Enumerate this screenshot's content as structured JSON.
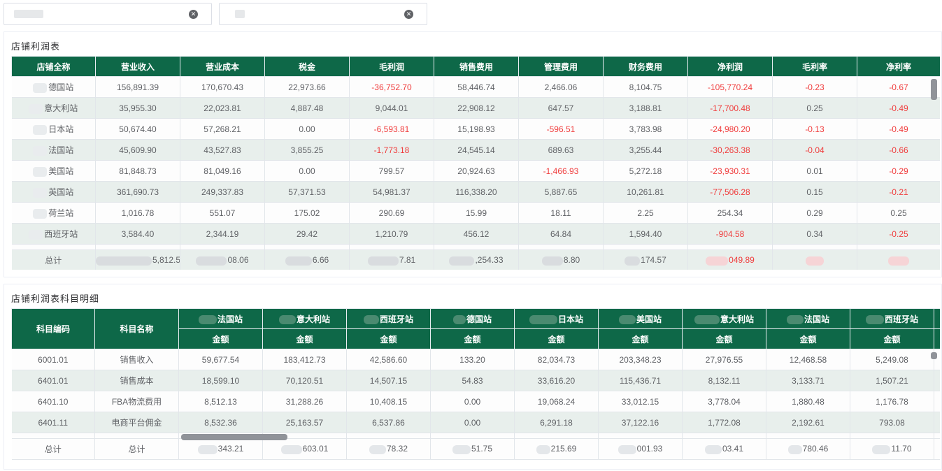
{
  "filters": [
    {
      "value": "",
      "clear_icon": "close-circle-icon"
    },
    {
      "value": "",
      "clear_icon": "close-circle-icon"
    }
  ],
  "profit_table": {
    "title": "店铺利润表",
    "headers": [
      "店铺全称",
      "营业收入",
      "营业成本",
      "税金",
      "毛利润",
      "销售费用",
      "管理费用",
      "财务费用",
      "净利润",
      "毛利率",
      "净利率"
    ],
    "rows": [
      [
        "德国站",
        "156,891.39",
        "170,670.43",
        "22,973.66",
        "-36,752.70",
        "58,446.74",
        "2,466.06",
        "8,104.75",
        "-105,770.24",
        "-0.23",
        "-0.67"
      ],
      [
        "意大利站",
        "35,955.30",
        "22,023.81",
        "4,887.48",
        "9,044.01",
        "22,908.12",
        "647.57",
        "3,188.81",
        "-17,700.48",
        "0.25",
        "-0.49"
      ],
      [
        "日本站",
        "50,674.40",
        "57,268.21",
        "0.00",
        "-6,593.81",
        "15,198.93",
        "-596.51",
        "3,783.98",
        "-24,980.20",
        "-0.13",
        "-0.49"
      ],
      [
        "法国站",
        "45,609.90",
        "43,527.83",
        "3,855.25",
        "-1,773.18",
        "24,545.14",
        "689.63",
        "3,255.44",
        "-30,263.38",
        "-0.04",
        "-0.66"
      ],
      [
        "美国站",
        "81,848.73",
        "81,049.16",
        "0.00",
        "799.57",
        "20,924.63",
        "-1,466.93",
        "5,272.18",
        "-23,930.31",
        "0.01",
        "-0.29"
      ],
      [
        "英国站",
        "361,690.73",
        "249,337.83",
        "57,371.53",
        "54,981.37",
        "116,338.20",
        "5,887.65",
        "10,261.81",
        "-77,506.28",
        "0.15",
        "-0.21"
      ],
      [
        "荷兰站",
        "1,016.78",
        "551.07",
        "175.02",
        "290.69",
        "15.99",
        "18.11",
        "2.25",
        "254.34",
        "0.29",
        "0.25"
      ],
      [
        "西班牙站",
        "3,584.40",
        "2,344.19",
        "29.42",
        "1,210.79",
        "456.12",
        "64.84",
        "1,594.40",
        "-904.58",
        "0.34",
        "-0.25"
      ]
    ],
    "total": [
      "总计",
      "5,812.53",
      "08.06",
      "6.66",
      "7.81",
      ",254.33",
      "8.80",
      "174.57",
      "049.89",
      "",
      ""
    ]
  },
  "detail_table": {
    "title": "店铺利润表科目明细",
    "fixed_headers": [
      "科目编码",
      "科目名称"
    ],
    "stations": [
      "法国站",
      "意大利站",
      "西班牙站",
      "德国站",
      "日本站",
      "美国站",
      "意大利站",
      "法国站",
      "西班牙站"
    ],
    "sub_header": "金额",
    "rows": [
      [
        "6001.01",
        "销售收入",
        "59,677.54",
        "183,412.73",
        "42,586.60",
        "133.20",
        "82,034.73",
        "203,348.23",
        "27,976.55",
        "12,468.58",
        "5,249.08"
      ],
      [
        "6401.01",
        "销售成本",
        "18,599.10",
        "70,120.51",
        "14,507.15",
        "54.83",
        "33,616.20",
        "115,436.71",
        "8,132.11",
        "3,133.71",
        "1,507.21"
      ],
      [
        "6401.10",
        "FBA物流费用",
        "8,512.13",
        "31,288.26",
        "10,408.15",
        "0.00",
        "19,068.24",
        "33,012.15",
        "3,778.04",
        "1,880.48",
        "1,176.78"
      ],
      [
        "6401.11",
        "电商平台佣金",
        "8,532.36",
        "25,163.57",
        "6,537.86",
        "0.00",
        "6,291.18",
        "37,122.16",
        "1,772.08",
        "2,192.61",
        "793.08"
      ]
    ],
    "total": [
      "总计",
      "总计",
      "343.21",
      "603.01",
      "78.32",
      "51.75",
      "215.69",
      "001.93",
      "03.41",
      "780.46",
      "11.70"
    ]
  },
  "colors": {
    "header": "#0e6848",
    "negative": "#f03d3d",
    "stripe": "#e8efec"
  }
}
